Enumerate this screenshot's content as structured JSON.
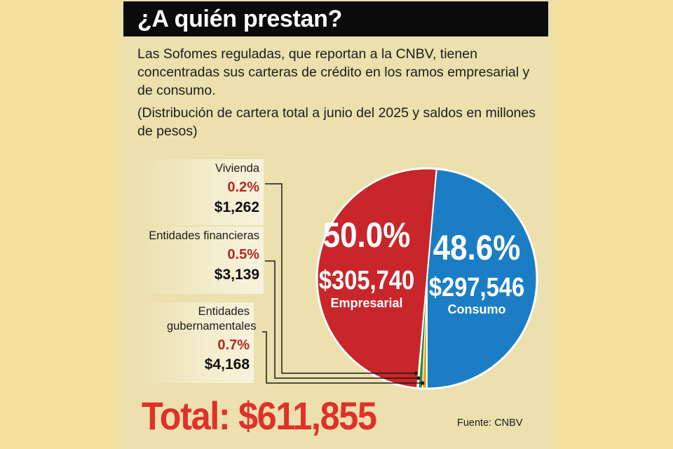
{
  "title": "¿A quién prestan?",
  "description": "Las Sofomes reguladas, que reportan a la CNBV, tienen concentradas sus carteras de crédito en los ramos empresarial y de consumo.",
  "note": "(Distribución de cartera total a junio del 2025 y saldos en millones de pesos)",
  "total_text": "Total: $611,855",
  "source": "Fuente: CNBV",
  "colors": {
    "empresarial": "#c8262a",
    "consumo": "#1b7ec4",
    "vivienda": "#f4efe2",
    "entidades_financieras": "#2f8a3a",
    "entidades_gubernamentales": "#e8a21c",
    "background": "#f3df9e",
    "panel": "#ebe0ae"
  },
  "chart_data": {
    "type": "pie",
    "total": 611855,
    "units": "millones de pesos",
    "slices": [
      {
        "key": "empresarial",
        "name": "Empresarial",
        "percent": 50.0,
        "percent_label": "50.0%",
        "value": 305740,
        "value_label": "$305,740"
      },
      {
        "key": "consumo",
        "name": "Consumo",
        "percent": 48.6,
        "percent_label": "48.6%",
        "value": 297546,
        "value_label": "$297,546"
      },
      {
        "key": "vivienda",
        "name": "Vivienda",
        "percent": 0.2,
        "percent_label": "0.2%",
        "value": 1262,
        "value_label": "$1,262"
      },
      {
        "key": "entidades_financieras",
        "name": "Entidades financieras",
        "percent": 0.5,
        "percent_label": "0.5%",
        "value": 3139,
        "value_label": "$3,139"
      },
      {
        "key": "entidades_gubernamentales",
        "name": "Entidades gubernamentales",
        "percent": 0.7,
        "percent_label": "0.7%",
        "value": 4168,
        "value_label": "$4,168"
      }
    ]
  }
}
